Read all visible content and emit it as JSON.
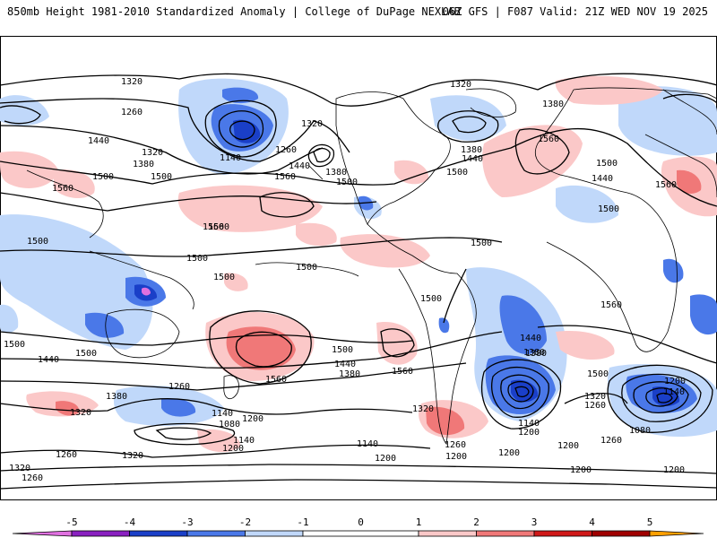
{
  "header": {
    "left": "850mb Height 1981-2010 Standardized Anomaly | College of DuPage NEXLAB",
    "right": "06Z GFS | F087 Valid: 21Z WED NOV 19 2025"
  },
  "colors": {
    "neg5": "#e070e0",
    "neg4": "#8a20c0",
    "neg3": "#1a3fc8",
    "neg2": "#4a78e8",
    "neg1": "#c0d8fa",
    "zero": "#ffffff",
    "pos1": "#fbc8c8",
    "pos2": "#f07878",
    "pos3": "#d01818",
    "pos4": "#a00000",
    "pos5": "#ffa000"
  },
  "colorbar": {
    "ticks": [
      "-5",
      "-4",
      "-3",
      "-2",
      "-1",
      "0",
      "1",
      "2",
      "3",
      "4",
      "5"
    ]
  },
  "contour_labels": [
    "1320",
    "1260",
    "1440",
    "1380",
    "1320",
    "1560",
    "1500",
    "1500",
    "1500",
    "1560",
    "1320",
    "1260",
    "1140",
    "1440",
    "1560",
    "1380",
    "1500",
    "1320",
    "1380",
    "1440",
    "1560",
    "1380",
    "1500",
    "1500",
    "1560",
    "1440",
    "1500",
    "1500",
    "1560",
    "1500",
    "1500",
    "1500",
    "1560",
    "1500",
    "1440",
    "1380",
    "1500",
    "1440",
    "1500",
    "1560",
    "1500",
    "1440",
    "1380",
    "1560",
    "1500",
    "1380",
    "1320",
    "1260",
    "1140",
    "1200",
    "1080",
    "1200",
    "1140",
    "1320",
    "1260",
    "1200",
    "1140",
    "1200",
    "1320",
    "1260",
    "1320",
    "1260",
    "1200",
    "1140",
    "1200",
    "1200",
    "1380",
    "1320",
    "1260",
    "1200",
    "1140",
    "1080",
    "1260",
    "1200",
    "1200"
  ]
}
